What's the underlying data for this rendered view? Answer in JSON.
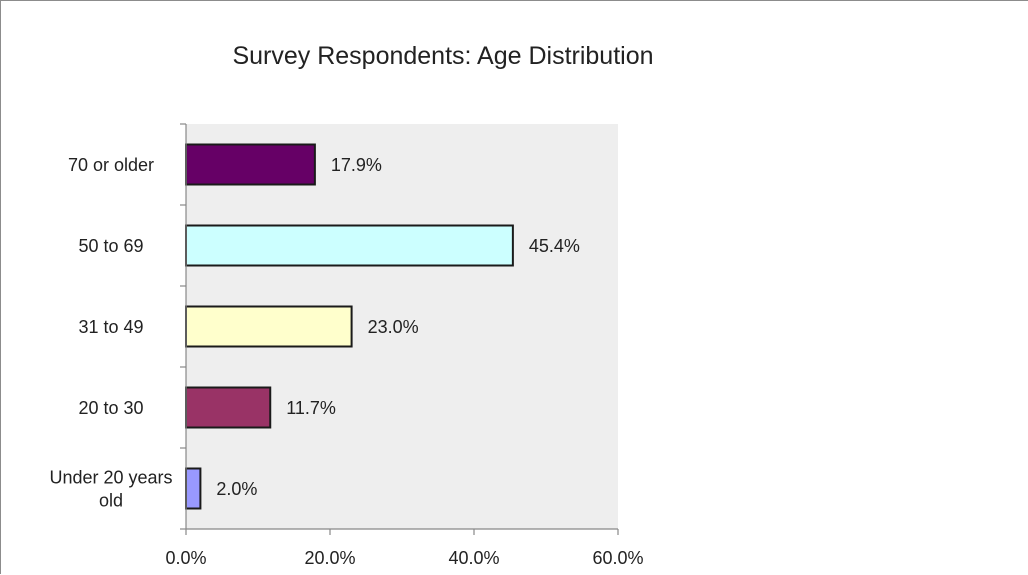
{
  "chart_data": {
    "type": "bar",
    "orientation": "horizontal",
    "title": "Survey Respondents: Age Distribution",
    "categories": [
      "70 or older",
      "50 to 69",
      "31 to 49",
      "20 to 30",
      "Under 20 years old"
    ],
    "category_lines": [
      [
        "70 or older"
      ],
      [
        "50 to 69"
      ],
      [
        "31 to 49"
      ],
      [
        "20 to 30"
      ],
      [
        "Under 20 years",
        "old"
      ]
    ],
    "values": [
      17.9,
      45.4,
      23.0,
      11.7,
      2.0
    ],
    "data_labels": [
      "17.9%",
      "45.4%",
      "23.0%",
      "11.7%",
      "2.0%"
    ],
    "bar_colors": [
      "#660066",
      "#ccffff",
      "#ffffcc",
      "#993366",
      "#9999ff"
    ],
    "xlim": [
      0,
      60
    ],
    "x_ticks": [
      0,
      20,
      40,
      60
    ],
    "x_tick_labels": [
      "0.0%",
      "20.0%",
      "40.0%",
      "60.0%"
    ],
    "plot_background": "#eeeeee",
    "grid": false,
    "legend": "none"
  }
}
